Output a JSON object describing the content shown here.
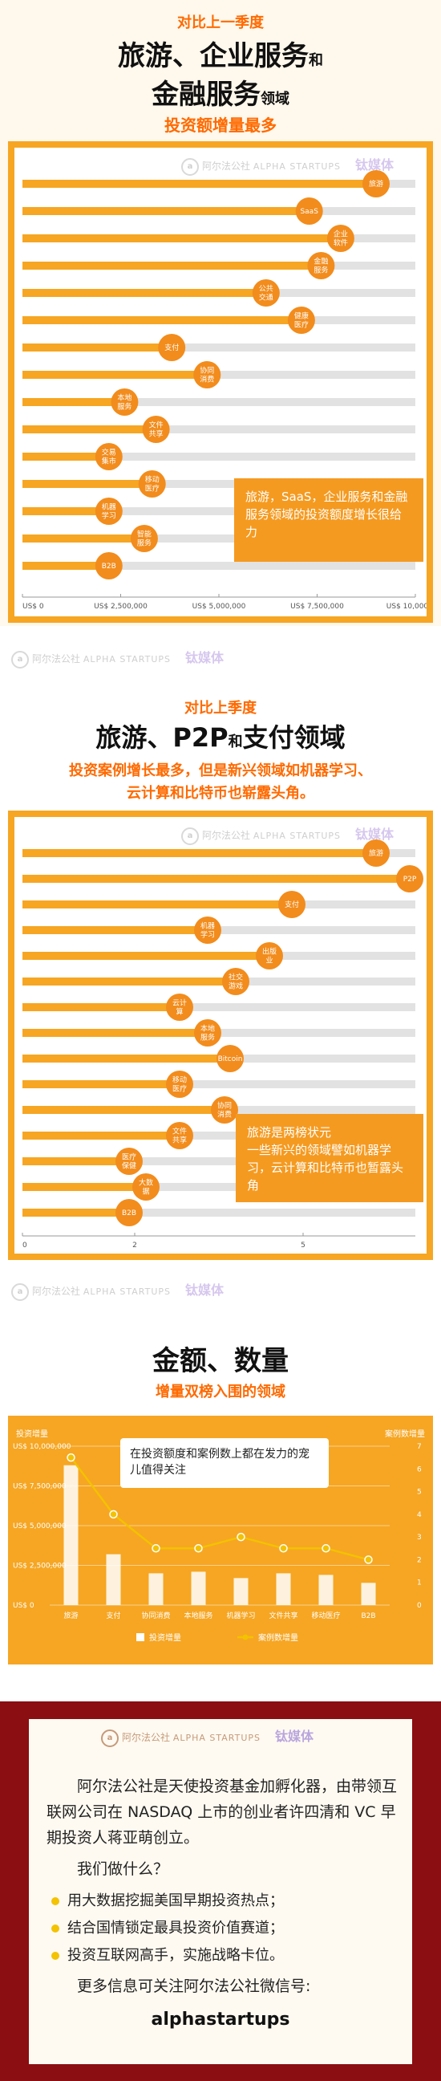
{
  "brand": {
    "cn": "阿尔法公社",
    "en": "ALPHA STARTUPS",
    "partner": "钛媒体"
  },
  "section1": {
    "kicker": "对比上一季度",
    "title_line1": "旅游、企业服务",
    "title_line1_small": "和",
    "title_line2": "金融服务",
    "title_line2_small": "领域",
    "subtitle": "投资额增量最多",
    "callout": "旅游，SaaS，企业服务和金融服务领域的投资额度增长很给力"
  },
  "section2": {
    "kicker": "对比上季度",
    "title_a": "旅游、P2P",
    "title_small": "和",
    "title_b": "支付领域",
    "subtitle_line1": "投资案例增长最多，但是新兴领域如机器学习、",
    "subtitle_line2": "云计算和比特币也崭露头角。",
    "callout": "旅游是两榜状元\n一些新兴的领域譬如机器学习，云计算和比特币也暂露头角"
  },
  "section3": {
    "title": "金额、数量",
    "subtitle": "增量双榜入围的领域",
    "left_axis_title": "投资增量",
    "right_axis_title": "案例数增量",
    "callout": "在投资额度和案例数上都在发力的宠儿值得关注",
    "legend_bar": "投资增量",
    "legend_line": "案例数增量"
  },
  "footer": {
    "intro": "阿尔法公社是天使投资基金加孵化器，由带领互联网公司在 NASDAQ 上市的创业者许四清和 VC 早期投资人蒋亚萌创立。",
    "question": "我们做什么？",
    "bullets": [
      "用大数据挖掘美国早期投资热点；",
      "结合国情锁定最具投资价值赛道；",
      "投资互联网高手，实施战略卡位。"
    ],
    "more": "更多信息可关注阿尔法公社微信号:",
    "wechat": "alphastartups"
  },
  "colors": {
    "orange": "#f6a623",
    "bubble": "#f28c1c",
    "bar_gray": "#cfcfcf",
    "accent": "#ff6a00",
    "footer_bg": "#8a0e12",
    "line_yellow": "#f3c200"
  },
  "chart_data": [
    {
      "type": "bar",
      "orientation": "horizontal",
      "categories": [
        "旅游",
        "SaaS",
        "企业软件",
        "金融服务",
        "公共交通",
        "健康医疗",
        "支付",
        "协同消费",
        "本地服务",
        "文件共享",
        "交易集市",
        "移动医疗",
        "机器学习",
        "智能服务",
        "B2B"
      ],
      "values": [
        9000000,
        7300000,
        8100000,
        7600000,
        6200000,
        7100000,
        3800000,
        4700000,
        2600000,
        3400000,
        2200000,
        3300000,
        2200000,
        3100000,
        2200000
      ],
      "xlim": [
        0,
        10000000
      ],
      "xticks": [
        "US$ 0",
        "US$ 2,500,000",
        "US$ 5,000,000",
        "US$ 7,500,000",
        "US$ 10,000,000"
      ]
    },
    {
      "type": "bar",
      "orientation": "horizontal",
      "categories": [
        "旅游",
        "P2P",
        "支付",
        "机器学习",
        "出版业",
        "社交游戏",
        "云计算",
        "本地服务",
        "Bitcoin",
        "移动医疗",
        "协同消费",
        "文件共享",
        "医疗保健",
        "大数据",
        "B2B"
      ],
      "values": [
        6.3,
        6.9,
        4.8,
        3.3,
        4.4,
        3.8,
        2.8,
        3.3,
        3.7,
        2.8,
        3.6,
        2.8,
        1.9,
        2.2,
        1.9
      ],
      "xlim": [
        0,
        7
      ],
      "xticks": [
        "0",
        "2",
        "5"
      ]
    },
    {
      "type": "bar",
      "categories": [
        "旅游",
        "支付",
        "协同消费",
        "本地服务",
        "机器学习",
        "文件共享",
        "移动医疗",
        "B2B"
      ],
      "series": [
        {
          "name": "投资增量",
          "type": "bar",
          "values": [
            8800000,
            3200000,
            2000000,
            2100000,
            1700000,
            2000000,
            1900000,
            1400000
          ],
          "axis": "left"
        },
        {
          "name": "案例数增量",
          "type": "line",
          "values": [
            6.5,
            4.0,
            2.5,
            2.5,
            3.0,
            2.5,
            2.5,
            2.0
          ],
          "axis": "right"
        }
      ],
      "ylim_left": [
        0,
        10000000
      ],
      "yticks_left": [
        "US$ 0",
        "US$ 2,500,000",
        "US$ 5,000,000",
        "US$ 7,500,000",
        "US$ 10,000,000"
      ],
      "ylim_right": [
        0,
        7
      ],
      "yticks_right": [
        "0",
        "1",
        "2",
        "3",
        "4",
        "5",
        "6",
        "7"
      ]
    }
  ]
}
